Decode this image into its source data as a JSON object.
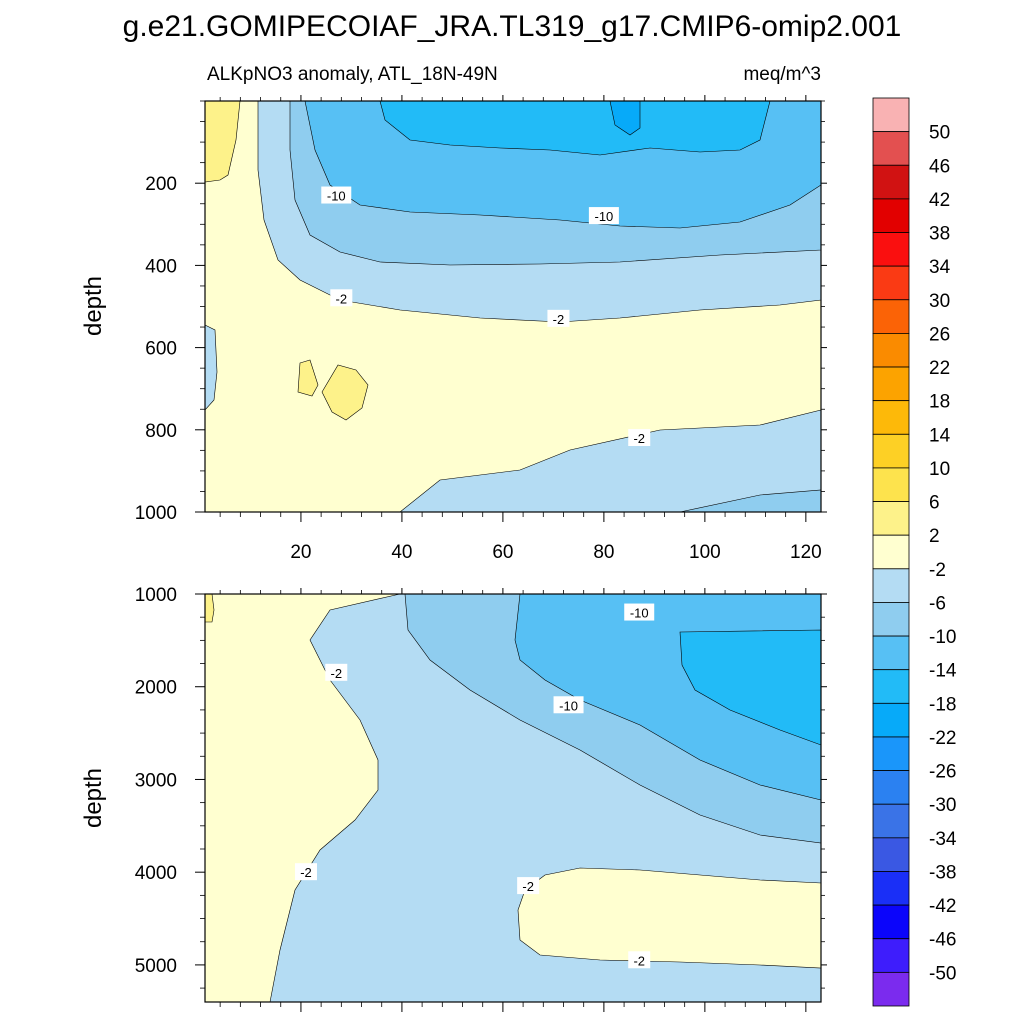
{
  "figure": {
    "title": "g.e21.GOMIPECOIAF_JRA.TL319_g17.CMIP6-omip2.001"
  },
  "chart_data": [
    {
      "type": "contour",
      "panel": "upper",
      "left_string": "ALKpNO3 anomaly, ATL_18N-49N",
      "right_string": "meq/m^3",
      "ylabel": "depth",
      "xlabel": "",
      "x_range": [
        1,
        123
      ],
      "y_range": [
        1000,
        0
      ],
      "x_ticks": [
        20,
        40,
        60,
        80,
        100,
        120
      ],
      "x_tick_labels": [
        "20",
        "40",
        "60",
        "80",
        "100",
        "120"
      ],
      "y_ticks": [
        200,
        400,
        600,
        800,
        1000
      ],
      "y_tick_labels": [
        "200",
        "400",
        "600",
        "800",
        "1000"
      ],
      "contour_labels": [
        {
          "text": "-10",
          "x": 27,
          "y": 230
        },
        {
          "text": "-10",
          "x": 80,
          "y": 280
        },
        {
          "text": "-2",
          "x": 28,
          "y": 480
        },
        {
          "text": "-2",
          "x": 71,
          "y": 530
        },
        {
          "text": "-2",
          "x": 87,
          "y": 820
        }
      ]
    },
    {
      "type": "contour",
      "panel": "lower",
      "ylabel": "depth",
      "xlabel": "",
      "x_range": [
        1,
        123
      ],
      "y_range": [
        5400,
        1000
      ],
      "y_ticks": [
        1000,
        2000,
        3000,
        4000,
        5000
      ],
      "y_tick_labels": [
        "1000",
        "2000",
        "3000",
        "4000",
        "5000"
      ],
      "contour_labels": [
        {
          "text": "-10",
          "x": 87,
          "y": 1200
        },
        {
          "text": "-2",
          "x": 27,
          "y": 1850
        },
        {
          "text": "-10",
          "x": 73,
          "y": 2200
        },
        {
          "text": "-2",
          "x": 21,
          "y": 4000
        },
        {
          "text": "-2",
          "x": 65,
          "y": 4150
        },
        {
          "text": "-2",
          "x": 87,
          "y": 4950
        }
      ]
    }
  ],
  "colorbar": {
    "levels": [
      "50",
      "46",
      "42",
      "38",
      "34",
      "30",
      "26",
      "22",
      "18",
      "14",
      "10",
      "6",
      "2",
      "-2",
      "-6",
      "-10",
      "-14",
      "-18",
      "-22",
      "-26",
      "-30",
      "-34",
      "-38",
      "-42",
      "-46",
      "-50"
    ],
    "colors": [
      "#f9b2b3",
      "#e35050",
      "#d11212",
      "#e20000",
      "#fa0f0f",
      "#fa3a14",
      "#fb6306",
      "#fa8b00",
      "#fca300",
      "#fdb909",
      "#fdd025",
      "#fde34d",
      "#fdf28a",
      "#ffffd0",
      "#b4dcf3",
      "#8fcdef",
      "#57c0f4",
      "#22bbf7",
      "#07aaf9",
      "#1a96fa",
      "#2b81f1",
      "#3a73e7",
      "#3a58e3",
      "#1a2ff7",
      "#0b05fb",
      "#3e1dfc",
      "#7b2bee"
    ]
  },
  "palette": {
    "p0": "#ffffd0",
    "p2": "#fdf28a",
    "m2": "#b4dcf3",
    "m6": "#8fcdef",
    "m10": "#57c0f4",
    "m14": "#22bbf7",
    "m18": "#07aaf9"
  }
}
